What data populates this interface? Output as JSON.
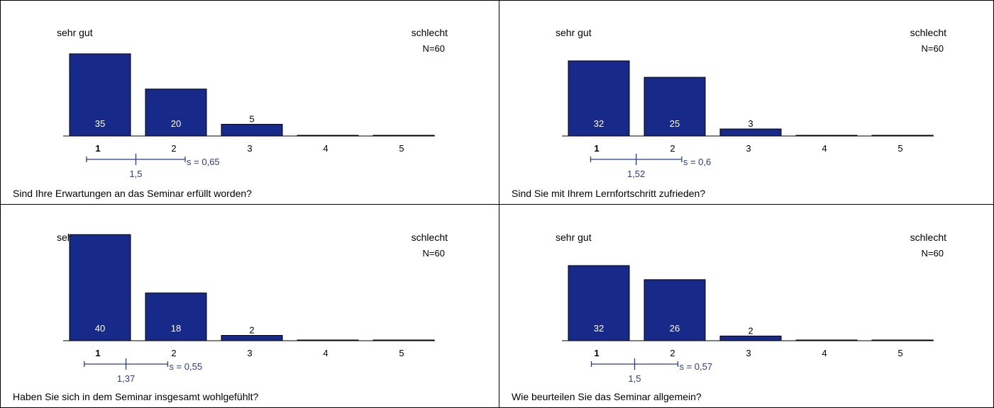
{
  "colors": {
    "bar": "#172a8a",
    "bar_outline": "#000000",
    "bar_label": "#ffffff",
    "stats": "#2a3a8a",
    "text": "#000000"
  },
  "chart_data": [
    {
      "type": "bar",
      "title": "Sind Ihre Erwartungen an das Seminar erfüllt worden?",
      "label_left": "sehr gut",
      "label_right": "schlecht",
      "n_label": "N=60",
      "categories": [
        "1",
        "2",
        "3",
        "4",
        "5"
      ],
      "values": [
        35,
        20,
        5,
        0,
        0
      ],
      "value_labels": [
        "35",
        "20",
        "5",
        "",
        ""
      ],
      "mean": 1.5,
      "mean_label": "1,5",
      "sd": 0.65,
      "sd_label": "s = 0,65"
    },
    {
      "type": "bar",
      "title": "Sind Sie mit Ihrem Lernfortschritt zufrieden?",
      "label_left": "sehr gut",
      "label_right": "schlecht",
      "n_label": "N=60",
      "categories": [
        "1",
        "2",
        "3",
        "4",
        "5"
      ],
      "values": [
        32,
        25,
        3,
        0,
        0
      ],
      "value_labels": [
        "32",
        "25",
        "3",
        "",
        ""
      ],
      "mean": 1.52,
      "mean_label": "1,52",
      "sd": 0.6,
      "sd_label": "s = 0,6"
    },
    {
      "type": "bar",
      "title": "Haben Sie sich in dem Seminar insgesamt wohlgefühlt?",
      "label_left": "sehr gut",
      "label_right": "schlecht",
      "n_label": "N=60",
      "categories": [
        "1",
        "2",
        "3",
        "4",
        "5"
      ],
      "values": [
        40,
        18,
        2,
        0,
        0
      ],
      "value_labels": [
        "40",
        "18",
        "2",
        "",
        ""
      ],
      "mean": 1.37,
      "mean_label": "1,37",
      "sd": 0.55,
      "sd_label": "s = 0,55"
    },
    {
      "type": "bar",
      "title": "Wie beurteilen Sie das Seminar allgemein?",
      "label_left": "sehr gut",
      "label_right": "schlecht",
      "n_label": "N=60",
      "categories": [
        "1",
        "2",
        "3",
        "4",
        "5"
      ],
      "values": [
        32,
        26,
        2,
        0,
        0
      ],
      "value_labels": [
        "32",
        "26",
        "2",
        "",
        ""
      ],
      "mean": 1.5,
      "mean_label": "1,5",
      "sd": 0.57,
      "sd_label": "s = 0,57"
    }
  ]
}
